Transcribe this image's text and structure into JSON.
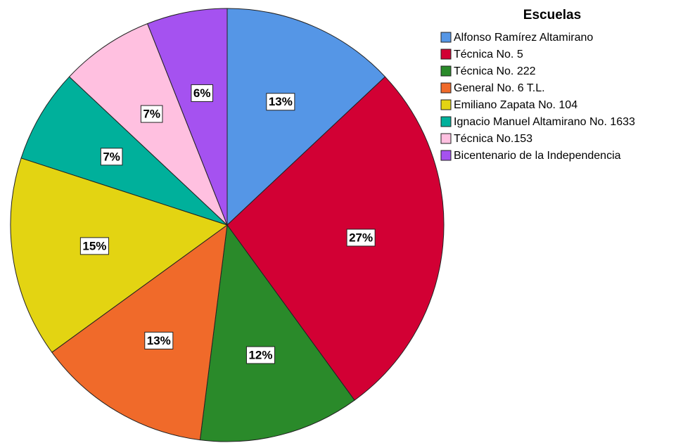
{
  "chart_data": {
    "type": "pie",
    "legend_title": "Escuelas",
    "categories": [
      "Alfonso Ramírez Altamirano",
      "Técnica No. 5",
      "Técnica No. 222",
      "General No. 6 T.L.",
      "Emiliano Zapata No. 104",
      "Ignacio Manuel Altamirano No. 1633",
      "Técnica No.153",
      "Bicentenario de la Independencia"
    ],
    "values": [
      13,
      27,
      12,
      13,
      15,
      7,
      7,
      6
    ],
    "value_labels": [
      "13%",
      "27%",
      "12%",
      "13%",
      "15%",
      "7%",
      "7%",
      "6%"
    ],
    "colors": [
      "#5596e6",
      "#d20034",
      "#2a8a2a",
      "#f06a2a",
      "#e3d412",
      "#00b09b",
      "#ffc0e0",
      "#a552f0"
    ],
    "legend": "upper right"
  }
}
